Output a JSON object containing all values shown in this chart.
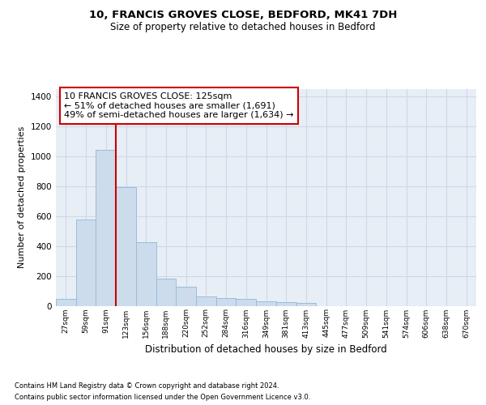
{
  "title1": "10, FRANCIS GROVES CLOSE, BEDFORD, MK41 7DH",
  "title2": "Size of property relative to detached houses in Bedford",
  "xlabel": "Distribution of detached houses by size in Bedford",
  "ylabel": "Number of detached properties",
  "footnote1": "Contains HM Land Registry data © Crown copyright and database right 2024.",
  "footnote2": "Contains public sector information licensed under the Open Government Licence v3.0.",
  "bar_labels": [
    "27sqm",
    "59sqm",
    "91sqm",
    "123sqm",
    "156sqm",
    "188sqm",
    "220sqm",
    "252sqm",
    "284sqm",
    "316sqm",
    "349sqm",
    "381sqm",
    "413sqm",
    "445sqm",
    "477sqm",
    "509sqm",
    "541sqm",
    "574sqm",
    "606sqm",
    "638sqm",
    "670sqm"
  ],
  "bar_values": [
    48,
    575,
    1042,
    792,
    425,
    180,
    130,
    65,
    50,
    48,
    30,
    27,
    18,
    0,
    0,
    0,
    0,
    0,
    0,
    0,
    0
  ],
  "bar_color": "#ccdcec",
  "bar_edgecolor": "#9bbcda",
  "grid_color": "#d0d8e4",
  "bg_color": "#e8eef6",
  "vline_color": "#cc0000",
  "annotation_text": "10 FRANCIS GROVES CLOSE: 125sqm\n← 51% of detached houses are smaller (1,691)\n49% of semi-detached houses are larger (1,634) →",
  "annotation_box_color": "#cc0000",
  "ylim": [
    0,
    1450
  ],
  "yticks": [
    0,
    200,
    400,
    600,
    800,
    1000,
    1200,
    1400
  ]
}
